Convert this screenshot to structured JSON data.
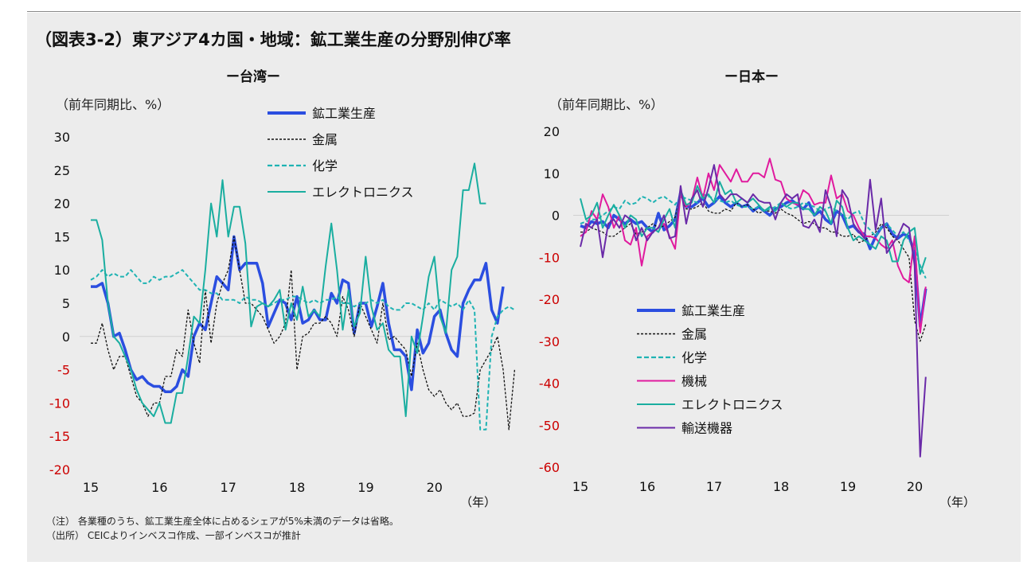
{
  "title": "（図表3-2）東アジア4カ国・地域：鉱工業生産の分野別伸び率",
  "notes": [
    "（注） 各業種のうち、鉱工業生産全体に占めるシェアが5%未満のデータは省略。",
    "（出所） CEICよりインベスコ作成、一部インベスコが推計"
  ],
  "colors": {
    "background": "#ececec",
    "negative_tick": "#cc0000",
    "industrial": "#2b4ee0",
    "metals": "#111111",
    "chemicals": "#1fb3b3",
    "machinery": "#e01a9e",
    "electronics": "#1aaea0",
    "transport": "#6a2aa8"
  },
  "chart_data": [
    {
      "type": "line",
      "title": "ー台湾ー",
      "ylabel": "（前年同期比、%）",
      "xlabel": "（年）",
      "ylim": [
        -20,
        30
      ],
      "yticks": [
        30,
        25,
        20,
        15,
        10,
        5,
        0,
        -5,
        -10,
        -15,
        -20
      ],
      "xlim": [
        2015,
        2020.5
      ],
      "xticks": [
        {
          "label": "15",
          "value": 2015
        },
        {
          "label": "16",
          "value": 2016
        },
        {
          "label": "17",
          "value": 2017
        },
        {
          "label": "18",
          "value": 2018
        },
        {
          "label": "19",
          "value": 2019
        },
        {
          "label": "20",
          "value": 2020
        }
      ],
      "x_start": 2015.0,
      "x_step": 0.0833,
      "legend_location": "top-center",
      "series": [
        {
          "name": "鉱工業生産",
          "key": "industrial",
          "style": "solid-thick",
          "values": [
            7.5,
            7.5,
            8.0,
            5.0,
            0.0,
            0.5,
            -2.0,
            -5.0,
            -6.5,
            -6.0,
            -7.0,
            -7.5,
            -7.5,
            -8.3,
            -8.3,
            -7.5,
            -5.0,
            -6.0,
            0.0,
            2.0,
            1.0,
            5.0,
            9.0,
            8.0,
            7.0,
            15.0,
            10.0,
            11.0,
            11.0,
            11.0,
            8.0,
            1.5,
            3.5,
            5.5,
            5.0,
            2.5,
            6.0,
            2.0,
            2.5,
            4.0,
            2.5,
            2.5,
            6.5,
            5.0,
            8.5,
            8.0,
            0.5,
            5.0,
            5.0,
            1.5,
            4.5,
            8.0,
            2.0,
            -2.0,
            -2.0,
            -3.0,
            -8.0,
            1.0,
            -2.5,
            -1.0,
            3.0,
            4.0,
            0.5,
            -2.0,
            -3.0,
            5.0,
            7.0,
            8.5,
            8.5,
            11.0,
            4.0,
            2.0,
            7.5
          ]
        },
        {
          "name": "金属",
          "key": "metals",
          "style": "dashed",
          "values": [
            -1.0,
            -1.0,
            2.0,
            -2.0,
            -5.0,
            -3.0,
            -3.0,
            -6.0,
            -9.0,
            -10.0,
            -12.0,
            -10.0,
            -10.0,
            -6.0,
            -6.0,
            -2.0,
            -3.0,
            4.0,
            -1.0,
            -4.0,
            7.0,
            -1.0,
            5.0,
            8.0,
            10.0,
            15.0,
            10.0,
            5.0,
            5.0,
            4.0,
            3.0,
            1.0,
            -1.0,
            0.0,
            2.0,
            10.0,
            -5.0,
            0.0,
            0.5,
            2.0,
            2.0,
            3.0,
            2.0,
            0.0,
            6.0,
            4.0,
            0.0,
            5.0,
            3.0,
            1.0,
            -1.0,
            5.0,
            -0.5,
            0.0,
            -1.0,
            -2.0,
            -6.0,
            -1.0,
            -5.0,
            -8.0,
            -9.0,
            -8.0,
            -10.0,
            -11.0,
            -10.0,
            -12.0,
            -12.0,
            -11.5,
            -5.0,
            -3.5,
            -2.0,
            0.0,
            -5.0,
            -14.0,
            -5.0
          ]
        },
        {
          "name": "化学",
          "key": "chemicals",
          "style": "dashed",
          "values": [
            8.5,
            9.0,
            10.0,
            9.0,
            9.5,
            9.0,
            9.0,
            10.0,
            9.0,
            8.0,
            8.0,
            9.0,
            8.5,
            9.0,
            9.0,
            9.5,
            10.0,
            9.0,
            8.0,
            7.0,
            7.0,
            6.5,
            6.5,
            5.5,
            5.5,
            5.5,
            5.0,
            6.0,
            5.5,
            5.5,
            5.0,
            4.5,
            5.0,
            5.5,
            5.5,
            6.0,
            6.0,
            5.5,
            5.0,
            5.5,
            5.0,
            5.5,
            5.5,
            6.0,
            5.0,
            5.0,
            4.5,
            5.0,
            5.0,
            5.5,
            5.0,
            5.5,
            4.5,
            4.0,
            4.0,
            5.0,
            5.0,
            4.5,
            4.0,
            5.0,
            4.0,
            5.5,
            5.0,
            4.5,
            5.0,
            4.0,
            5.5,
            4.0,
            -14.0,
            -14.0,
            0.0,
            3.0,
            4.0,
            4.5,
            4.0
          ]
        },
        {
          "name": "エレクトロニクス",
          "key": "electronics",
          "style": "solid",
          "values": [
            17.5,
            17.5,
            14.5,
            5.0,
            0.0,
            -1.0,
            -3.0,
            -5.0,
            -8.0,
            -10.0,
            -11.0,
            -12.0,
            -10.0,
            -13.0,
            -13.0,
            -8.5,
            -8.5,
            -3.0,
            3.0,
            2.0,
            10.0,
            20.0,
            15.0,
            23.5,
            15.0,
            19.5,
            19.5,
            14.0,
            1.5,
            4.5,
            5.0,
            4.5,
            5.5,
            7.0,
            1.0,
            5.0,
            2.5,
            7.5,
            3.0,
            4.0,
            3.0,
            10.5,
            17.0,
            10.0,
            1.0,
            7.0,
            1.5,
            3.5,
            12.0,
            4.5,
            1.0,
            2.0,
            -2.0,
            -3.0,
            -3.0,
            -12.0,
            0.0,
            -2.5,
            3.0,
            9.0,
            12.0,
            3.0,
            0.5,
            10.0,
            12.0,
            22.0,
            22.0,
            26.0,
            20.0,
            20.0
          ]
        }
      ]
    },
    {
      "type": "line",
      "title": "ー日本ー",
      "ylabel": "（前年同期比、%）",
      "xlabel": "（年）",
      "ylim": [
        -60,
        20
      ],
      "yticks": [
        20,
        10,
        0,
        -10,
        -20,
        -30,
        -40,
        -50,
        -60
      ],
      "xlim": [
        2015,
        2020.5
      ],
      "xticks": [
        {
          "label": "15",
          "value": 2015
        },
        {
          "label": "16",
          "value": 2016
        },
        {
          "label": "17",
          "value": 2017
        },
        {
          "label": "18",
          "value": 2018
        },
        {
          "label": "19",
          "value": 2019
        },
        {
          "label": "20",
          "value": 2020
        }
      ],
      "x_start": 2015.0,
      "x_step": 0.0833,
      "legend_location": "bottom-center",
      "series": [
        {
          "name": "鉱工業生産",
          "key": "industrial",
          "style": "solid-thick",
          "values": [
            -2.5,
            -3.0,
            -1.5,
            -2.0,
            -1.5,
            -3.0,
            0.0,
            -1.0,
            -2.0,
            -1.0,
            -2.0,
            -1.5,
            -3.0,
            -4.0,
            0.5,
            -3.5,
            -2.5,
            -1.0,
            5.5,
            2.0,
            2.0,
            3.0,
            4.0,
            2.0,
            3.0,
            4.5,
            3.0,
            2.0,
            3.0,
            2.0,
            2.5,
            1.0,
            2.0,
            1.0,
            0.0,
            1.5,
            2.0,
            3.0,
            3.5,
            2.5,
            1.5,
            3.0,
            0.0,
            1.0,
            -1.0,
            -2.0,
            1.0,
            0.0,
            -3.0,
            -2.5,
            -4.0,
            -4.5,
            -8.0,
            -5.0,
            -3.0,
            -2.0,
            -4.5,
            -5.5,
            -4.5,
            -5.0,
            -9.0,
            -26.5,
            -17.5
          ]
        },
        {
          "name": "金属",
          "key": "metals",
          "style": "dashed",
          "values": [
            -4.0,
            -4.0,
            -3.0,
            -3.5,
            -4.0,
            -5.0,
            -5.0,
            -4.0,
            -3.0,
            -2.0,
            -4.5,
            -4.0,
            -3.0,
            -2.0,
            -3.0,
            -2.5,
            -1.5,
            -0.5,
            5.0,
            1.5,
            1.5,
            2.0,
            3.0,
            1.0,
            0.5,
            0.5,
            1.5,
            1.0,
            3.0,
            2.0,
            2.5,
            1.5,
            0.5,
            1.0,
            1.0,
            0.5,
            1.5,
            0.5,
            0.0,
            -1.0,
            -2.0,
            -1.5,
            -2.0,
            -3.0,
            -3.0,
            -4.0,
            -4.0,
            -5.0,
            -5.0,
            -4.5,
            -6.5,
            -6.0,
            -5.0,
            -4.0,
            -2.0,
            -3.0,
            -5.0,
            -6.0,
            -8.0,
            -10.0,
            -25.0,
            -30.0,
            -26.0
          ]
        },
        {
          "name": "化学",
          "key": "chemicals",
          "style": "dashed",
          "values": [
            -2.0,
            -1.5,
            -1.0,
            -1.0,
            0.0,
            1.0,
            2.0,
            1.5,
            3.5,
            2.5,
            3.0,
            4.5,
            4.0,
            3.0,
            4.0,
            4.5,
            3.5,
            2.5,
            4.5,
            4.0,
            3.5,
            3.0,
            5.0,
            4.5,
            4.0,
            3.5,
            3.0,
            3.5,
            2.5,
            2.0,
            2.0,
            1.5,
            2.0,
            1.0,
            1.5,
            2.0,
            3.0,
            2.0,
            1.5,
            2.0,
            3.0,
            2.5,
            2.0,
            1.0,
            1.5,
            2.0,
            1.0,
            0.0,
            -1.0,
            0.5,
            1.0,
            -2.0,
            -3.5,
            -5.0,
            -3.0,
            -2.0,
            -3.5,
            -5.0,
            -4.0,
            -6.0,
            -8.0,
            -12.0,
            -15.0
          ]
        },
        {
          "name": "機械",
          "key": "machinery",
          "style": "solid",
          "values": [
            -5.0,
            -4.0,
            1.0,
            -1.0,
            5.0,
            2.0,
            -3.0,
            0.0,
            -6.0,
            -7.0,
            -3.0,
            -12.0,
            -5.0,
            -4.0,
            -3.0,
            -2.0,
            -5.0,
            -8.0,
            5.0,
            2.0,
            3.5,
            9.0,
            4.0,
            10.0,
            6.0,
            12.0,
            10.0,
            8.0,
            11.0,
            8.0,
            8.0,
            10.0,
            10.0,
            9.0,
            13.5,
            8.5,
            8.0,
            4.0,
            3.0,
            2.5,
            6.0,
            5.0,
            2.5,
            3.0,
            3.0,
            9.5,
            4.0,
            5.0,
            1.0,
            0.0,
            -3.0,
            -5.0,
            -5.0,
            -5.5,
            -7.0,
            -8.0,
            -6.0,
            -12.0,
            -15.0,
            -16.0,
            -5.0,
            -28.0,
            -17.0
          ]
        },
        {
          "name": "エレクトロニクス",
          "key": "electronics",
          "style": "solid",
          "values": [
            4.0,
            -1.0,
            0.0,
            3.0,
            -3.0,
            0.0,
            2.5,
            0.0,
            -3.0,
            0.0,
            -1.0,
            -5.0,
            -3.0,
            -3.0,
            -4.0,
            -1.0,
            1.5,
            -3.0,
            6.0,
            2.5,
            3.0,
            7.0,
            4.0,
            5.0,
            3.0,
            8.0,
            5.0,
            6.0,
            3.0,
            4.0,
            3.0,
            4.0,
            2.5,
            1.0,
            2.0,
            1.0,
            3.0,
            2.0,
            3.0,
            3.0,
            1.5,
            1.5,
            0.0,
            2.0,
            1.0,
            -2.0,
            3.5,
            2.0,
            -3.0,
            -6.0,
            -5.0,
            -6.0,
            -7.0,
            -8.0,
            -5.0,
            -6.0,
            -11.0,
            -11.0,
            -6.0,
            -4.0,
            -3.0,
            -14.0,
            -10.0
          ]
        },
        {
          "name": "輸送機器",
          "key": "transport",
          "style": "solid",
          "values": [
            -7.5,
            -2.0,
            -3.0,
            -1.0,
            -10.0,
            -2.0,
            -1.0,
            -3.0,
            0.0,
            -1.0,
            -6.0,
            -3.0,
            -6.0,
            -4.0,
            -3.0,
            0.0,
            -5.5,
            -5.0,
            7.0,
            -2.0,
            4.0,
            6.0,
            2.0,
            6.5,
            12.0,
            5.0,
            3.5,
            5.0,
            5.0,
            4.0,
            3.0,
            5.0,
            3.5,
            3.0,
            3.0,
            -1.0,
            3.0,
            5.0,
            4.0,
            5.0,
            -2.5,
            -3.0,
            -1.0,
            -4.0,
            6.0,
            2.0,
            -5.0,
            6.0,
            4.0,
            -2.0,
            -4.0,
            -5.5,
            8.5,
            -3.5,
            4.0,
            -9.0,
            -7.0,
            -5.0,
            -2.0,
            -3.0,
            -12.0,
            -57.5,
            -38.5
          ]
        }
      ]
    }
  ]
}
